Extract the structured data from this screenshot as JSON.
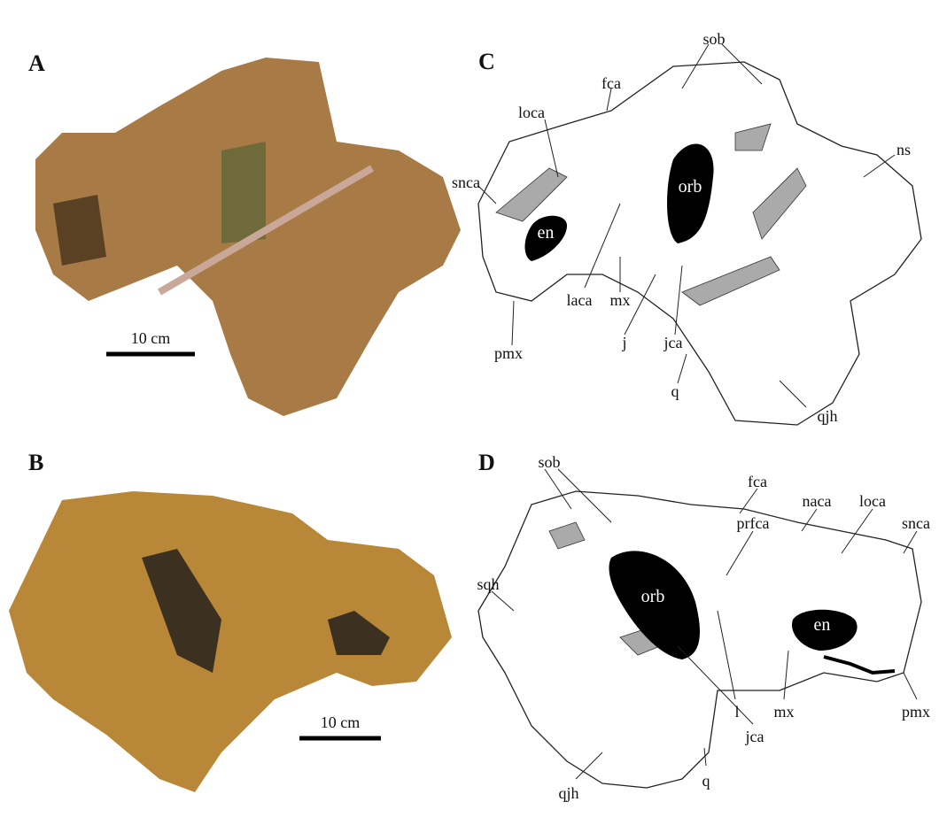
{
  "panels": [
    {
      "letter": "A",
      "scale_bar": "10 cm"
    },
    {
      "letter": "B",
      "scale_bar": "10 cm"
    },
    {
      "letter": "C",
      "labels": [
        "sob",
        "fca",
        "loca",
        "ns",
        "snca",
        "orb",
        "en",
        "laca",
        "mx",
        "pmx",
        "j",
        "jca",
        "q",
        "qjh"
      ]
    },
    {
      "letter": "D",
      "labels": [
        "sob",
        "fca",
        "naca",
        "loca",
        "prfca",
        "snca",
        "sqh",
        "orb",
        "en",
        "l",
        "mx",
        "jca",
        "pmx",
        "qjh",
        "q"
      ]
    }
  ]
}
